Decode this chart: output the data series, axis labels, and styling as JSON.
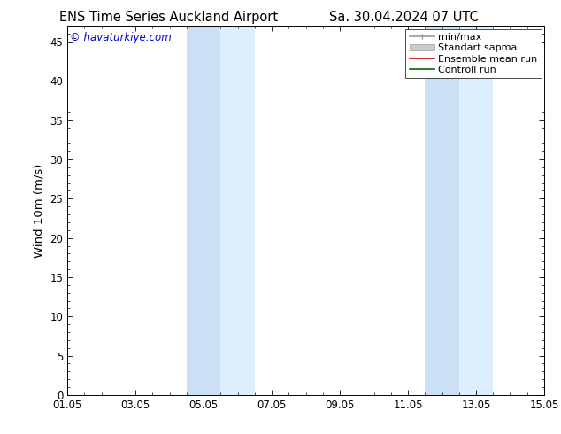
{
  "title_left": "ENS Time Series Auckland Airport",
  "title_right": "Sa. 30.04.2024 07 UTC",
  "ylabel": "Wind 10m (m/s)",
  "watermark": "© havaturkiye.com",
  "watermark_color": "#0000cc",
  "xtick_labels": [
    "01.05",
    "03.05",
    "05.05",
    "07.05",
    "09.05",
    "11.05",
    "13.05",
    "15.05"
  ],
  "xtick_positions": [
    0,
    2,
    4,
    6,
    8,
    10,
    12,
    14
  ],
  "ylim": [
    0,
    47
  ],
  "ytick_positions": [
    0,
    5,
    10,
    15,
    20,
    25,
    30,
    35,
    40,
    45
  ],
  "shaded_bands": [
    {
      "x_start": 3.5,
      "x_end": 4.5,
      "color": "#cce0f5"
    },
    {
      "x_start": 4.5,
      "x_end": 5.5,
      "color": "#ddeeff"
    },
    {
      "x_start": 10.5,
      "x_end": 11.5,
      "color": "#cce0f5"
    },
    {
      "x_start": 11.5,
      "x_end": 12.5,
      "color": "#ddeeff"
    }
  ],
  "background_color": "#ffffff",
  "legend_items": [
    {
      "label": "min/max",
      "color": "#999999",
      "lw": 1.2,
      "style": "minmax"
    },
    {
      "label": "Standart sapma",
      "color": "#cccccc",
      "lw": 5,
      "style": "bar"
    },
    {
      "label": "Ensemble mean run",
      "color": "#cc0000",
      "lw": 1.2,
      "style": "line"
    },
    {
      "label": "Controll run",
      "color": "#006600",
      "lw": 1.2,
      "style": "line"
    }
  ],
  "title_fontsize": 10.5,
  "axis_fontsize": 9.5,
  "tick_fontsize": 8.5,
  "legend_fontsize": 8,
  "watermark_fontsize": 8.5
}
